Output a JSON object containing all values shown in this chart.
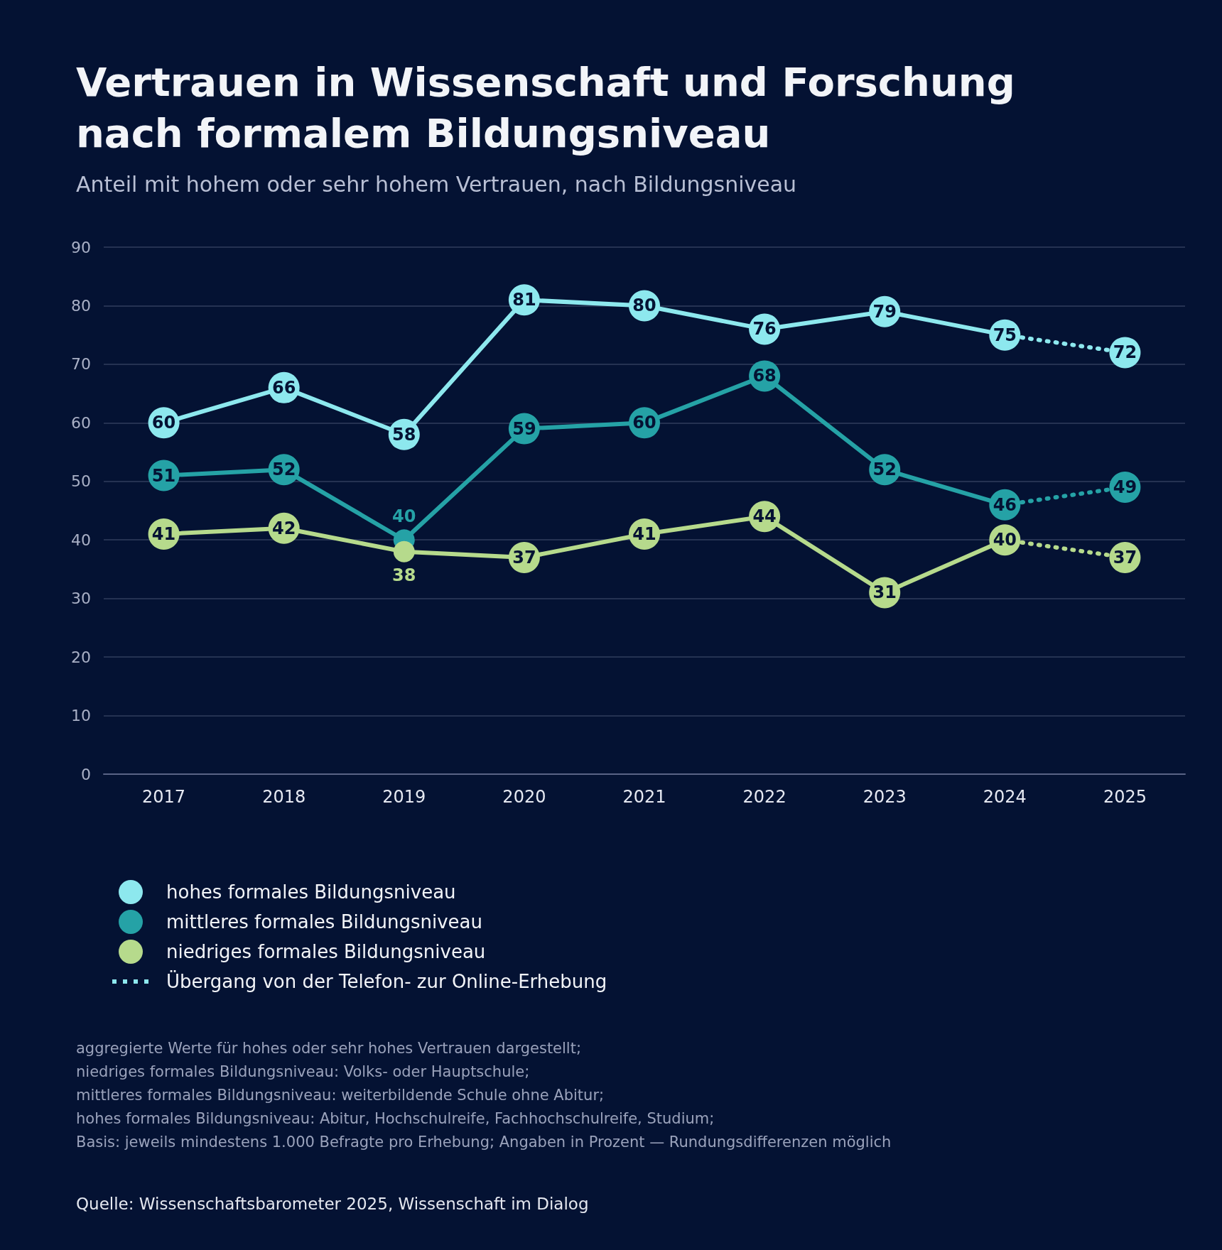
{
  "chart_data": {
    "type": "line",
    "title": "Vertrauen in Wissenschaft und Forschung nach formalem Bildungsniveau",
    "subtitle": "Anteil mit hohem oder sehr hohem Vertrauen, nach Bildungsniveau",
    "categories": [
      "2017",
      "2018",
      "2019",
      "2020",
      "2021",
      "2022",
      "2023",
      "2024",
      "2025"
    ],
    "series": [
      {
        "name": "hohes formales Bildungsniveau",
        "color": "#8de8ee",
        "values": [
          60,
          66,
          58,
          81,
          80,
          76,
          79,
          75,
          null
        ]
      },
      {
        "name": "mittleres formales Bildungsniveau",
        "color": "#25a2a6",
        "values": [
          51,
          52,
          40,
          59,
          60,
          68,
          52,
          46,
          null
        ]
      },
      {
        "name": "niedriges formales Bildungsniveau",
        "color": "#b6da8c",
        "values": [
          41,
          42,
          38,
          37,
          41,
          44,
          31,
          40,
          null
        ]
      },
      {
        "name": "Übergang von der Telefon- zur Online-Erhebung",
        "color": "#8de8ee",
        "line_style": "dotted",
        "values": [
          null,
          null,
          null,
          null,
          null,
          null,
          null,
          75,
          72
        ],
        "value_labels": [
          null,
          null,
          null,
          null,
          null,
          null,
          null,
          null,
          "72"
        ]
      },
      {
        "color": "#25a2a6",
        "line_style": "dotted",
        "values": [
          null,
          null,
          null,
          null,
          null,
          null,
          null,
          46,
          49
        ],
        "value_labels": [
          null,
          null,
          null,
          null,
          null,
          null,
          null,
          null,
          "49"
        ]
      },
      {
        "color": "#b6da8c",
        "line_style": "dotted",
        "values": [
          null,
          null,
          null,
          null,
          null,
          null,
          null,
          40,
          37
        ],
        "value_labels": [
          null,
          null,
          null,
          null,
          null,
          null,
          null,
          null,
          "37"
        ]
      }
    ],
    "ylim": [
      0,
      90
    ],
    "yticks": [
      0,
      10,
      20,
      30,
      40,
      50,
      60,
      70,
      80,
      90
    ],
    "grid": "y",
    "legend": "bottom",
    "marker": "circle",
    "line_style": "solid",
    "data_labels": true,
    "annotations": [
      "aggregierte Werte für hohes oder sehr hohes Vertrauen dargestellt;",
      "niedriges formales Bildungsniveau: Volks- oder Hauptschule;",
      "mittleres formales Bildungsniveau: weiterbildende Schule ohne Abitur;",
      "hohes formales Bildungsniveau: Abitur, Hochschulreife, Fachhochschulreife, Studium;",
      "Basis: jeweils mindestens 1.000 Befragte pro Erhebung; Angaben in Prozent — Rundungsdifferenzen möglich",
      "Quelle: Wissenschaftsbarometer 2025, Wissenschaft im Dialog"
    ]
  }
}
